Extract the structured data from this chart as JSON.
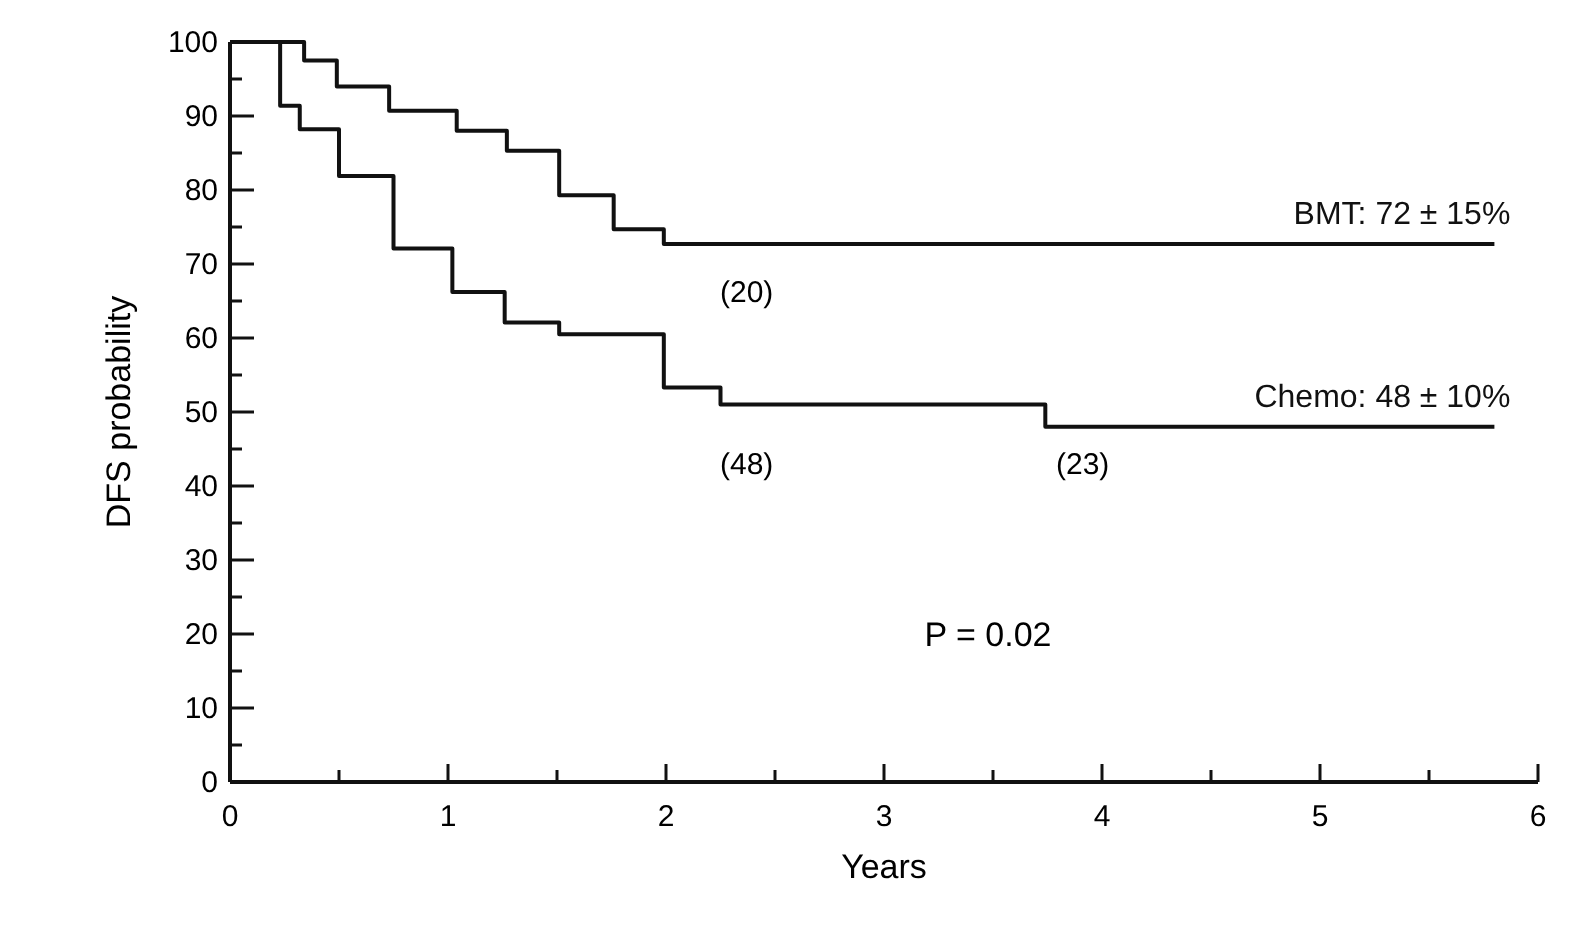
{
  "chart_data": {
    "type": "step",
    "xlabel": "Years",
    "ylabel": "DFS probability",
    "xlim": [
      0,
      6
    ],
    "ylim": [
      0,
      100
    ],
    "xticks": [
      0,
      {
        "value": 0.5,
        "label": null
      },
      1,
      {
        "value": 1.5,
        "label": null
      },
      2,
      {
        "value": 2.5,
        "label": null
      },
      3,
      {
        "value": 3.5,
        "label": null
      },
      4,
      {
        "value": 4.5,
        "label": null
      },
      5,
      {
        "value": 5.5,
        "label": null
      },
      6
    ],
    "yticks": [
      0,
      {
        "value": 5,
        "label": null
      },
      10,
      {
        "value": 15,
        "label": null
      },
      20,
      {
        "value": 25,
        "label": null
      },
      30,
      {
        "value": 35,
        "label": null
      },
      40,
      {
        "value": 45,
        "label": null
      },
      50,
      {
        "value": 55,
        "label": null
      },
      60,
      {
        "value": 65,
        "label": null
      },
      70,
      {
        "value": 75,
        "label": null
      },
      80,
      {
        "value": 85,
        "label": null
      },
      90,
      {
        "value": 95,
        "label": null
      },
      100
    ],
    "grid": false,
    "legend": false,
    "marker": "none",
    "line_style": "solid",
    "series": [
      {
        "name": "BMT: 72 ± 15%",
        "color": "#111111",
        "x": [
          0,
          0.34,
          0.49,
          0.73,
          1.04,
          1.27,
          1.51,
          1.76,
          1.99,
          5.8
        ],
        "values": [
          100,
          97.5,
          94,
          90.7,
          88,
          85.3,
          79.3,
          74.7,
          72.7,
          72.7
        ]
      },
      {
        "name": "Chemo: 48 ± 10%",
        "color": "#111111",
        "x": [
          0,
          0.23,
          0.32,
          0.5,
          0.75,
          1.02,
          1.26,
          1.51,
          1.99,
          2.25,
          3.74,
          5.8
        ],
        "values": [
          100,
          91.4,
          88.2,
          81.9,
          72.1,
          66.2,
          62.1,
          60.5,
          53.3,
          51,
          48,
          48
        ]
      }
    ],
    "annotations": [
      "(20)",
      "(48)",
      "(23)",
      "P = 0.02"
    ]
  }
}
